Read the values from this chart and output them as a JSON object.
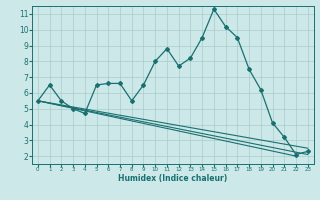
{
  "xlabel": "Humidex (Indice chaleur)",
  "bg_color": "#cce8e8",
  "grid_color": "#aacccc",
  "line_color": "#1a7070",
  "xlim": [
    -0.5,
    23.5
  ],
  "ylim": [
    1.5,
    11.5
  ],
  "yticks": [
    2,
    3,
    4,
    5,
    6,
    7,
    8,
    9,
    10,
    11
  ],
  "xticks": [
    0,
    1,
    2,
    3,
    4,
    5,
    6,
    7,
    8,
    9,
    10,
    11,
    12,
    13,
    14,
    15,
    16,
    17,
    18,
    19,
    20,
    21,
    22,
    23
  ],
  "series_main": {
    "x": [
      0,
      1,
      2,
      3,
      4,
      5,
      6,
      7,
      8,
      9,
      10,
      11,
      12,
      13,
      14,
      15,
      16,
      17,
      18,
      19,
      20,
      21,
      22,
      23
    ],
    "y": [
      5.5,
      6.5,
      5.5,
      5.0,
      4.7,
      6.5,
      6.6,
      6.6,
      5.5,
      6.5,
      8.0,
      8.8,
      7.7,
      8.2,
      9.5,
      11.3,
      10.2,
      9.5,
      7.5,
      6.2,
      4.1,
      3.2,
      2.1,
      2.3
    ]
  },
  "series_lines": [
    {
      "x": [
        0,
        23
      ],
      "y": [
        5.5,
        2.1
      ]
    },
    {
      "x": [
        0,
        23
      ],
      "y": [
        5.5,
        2.3
      ]
    },
    {
      "x": [
        0,
        23
      ],
      "y": [
        5.5,
        2.5
      ]
    }
  ]
}
